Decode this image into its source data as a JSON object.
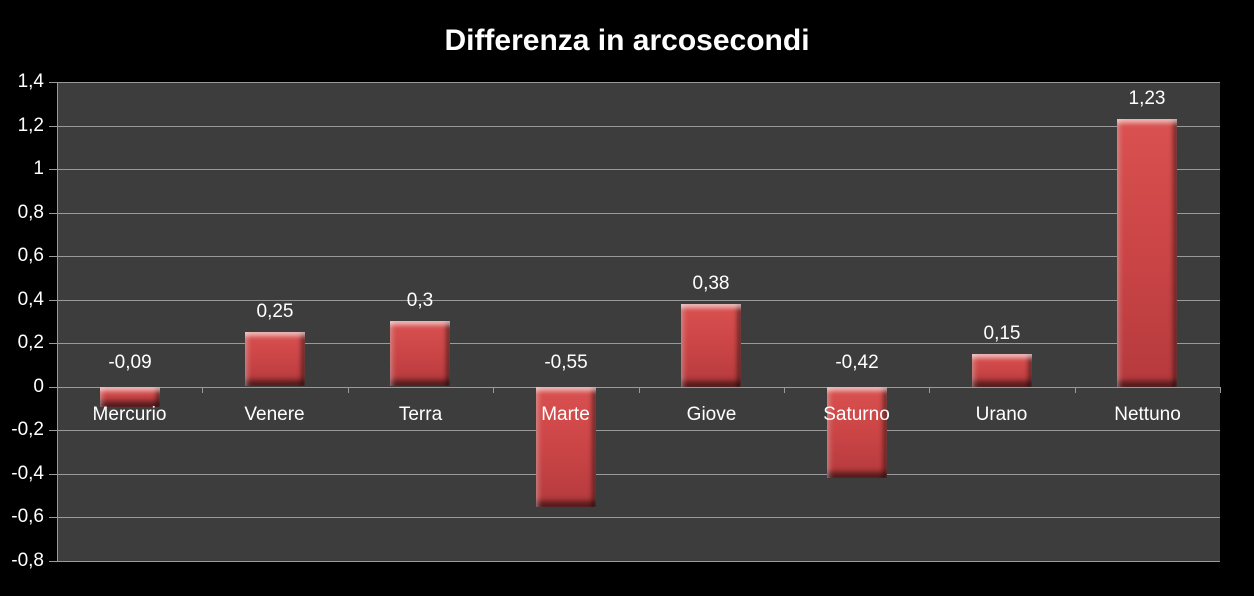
{
  "chart_data": {
    "type": "bar",
    "title": "Differenza in arcosecondi",
    "categories": [
      "Mercurio",
      "Venere",
      "Terra",
      "Marte",
      "Giove",
      "Saturno",
      "Urano",
      "Nettuno"
    ],
    "values": [
      -0.09,
      0.25,
      0.3,
      -0.55,
      0.38,
      -0.42,
      0.15,
      1.23
    ],
    "value_labels": [
      "-0,09",
      "0,25",
      "0,3",
      "-0,55",
      "0,38",
      "-0,42",
      "0,15",
      "1,23"
    ],
    "xlabel": "",
    "ylabel": "",
    "ylim": [
      -0.8,
      1.4
    ],
    "y_tick_values": [
      1.4,
      1.2,
      1.0,
      0.8,
      0.6,
      0.4,
      0.2,
      0.0,
      -0.2,
      -0.4,
      -0.6,
      -0.8
    ],
    "y_tick_labels": [
      "1,4",
      "1,2",
      "1",
      "0,8",
      "0,6",
      "0,4",
      "0,2",
      "0",
      "-0,2",
      "-0,4",
      "-0,6",
      "-0,8"
    ],
    "grid": true,
    "legend": "none",
    "colors": {
      "background": "#000000",
      "plot_background": "#3d3d3d",
      "gridline": "#9a9a9a",
      "bar": "#cd4647",
      "bar_highlight": "#ef8987",
      "bar_shadow": "#8e2d30",
      "text": "#ffffff"
    }
  }
}
